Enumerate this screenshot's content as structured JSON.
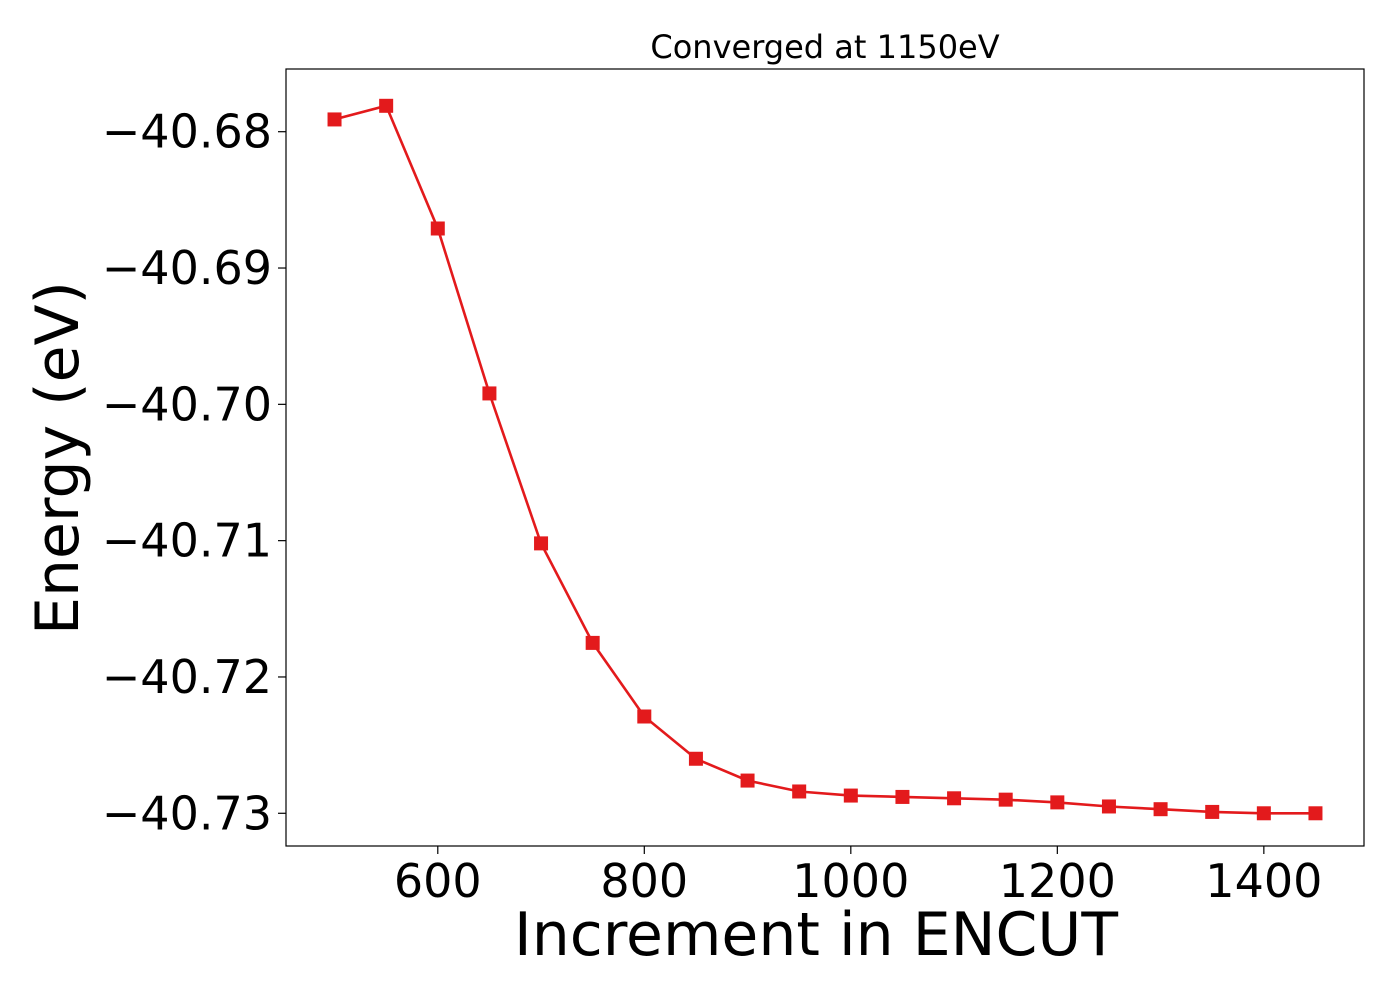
{
  "chart_data": {
    "type": "line",
    "title": "Converged at 1150eV",
    "xlabel": "Increment in ENCUT",
    "ylabel": "Energy (eV)",
    "xlim": [
      453,
      1497
    ],
    "ylim": [
      -40.7324,
      -40.6754
    ],
    "xticks": [
      600,
      800,
      1000,
      1200,
      1400
    ],
    "xtick_labels": [
      "600",
      "800",
      "1000",
      "1200",
      "1400"
    ],
    "yticks": [
      -40.68,
      -40.69,
      -40.7,
      -40.71,
      -40.72,
      -40.73
    ],
    "ytick_labels": [
      "−40.68",
      "−40.69",
      "−40.70",
      "−40.71",
      "−40.72",
      "−40.73"
    ],
    "grid": false,
    "color": "#e31a1c",
    "marker": "square",
    "series": [
      {
        "x": [
          500,
          550,
          600,
          650,
          700,
          750,
          800,
          850,
          900,
          950,
          1000,
          1050,
          1100,
          1150,
          1200,
          1250,
          1300,
          1350,
          1400,
          1450
        ],
        "y": [
          -40.6791,
          -40.6781,
          -40.6871,
          -40.6992,
          -40.7102,
          -40.7175,
          -40.7229,
          -40.726,
          -40.7276,
          -40.7284,
          -40.7287,
          -40.7288,
          -40.7289,
          -40.729,
          -40.7292,
          -40.7295,
          -40.7297,
          -40.7299,
          -40.73,
          -40.73
        ]
      }
    ]
  }
}
